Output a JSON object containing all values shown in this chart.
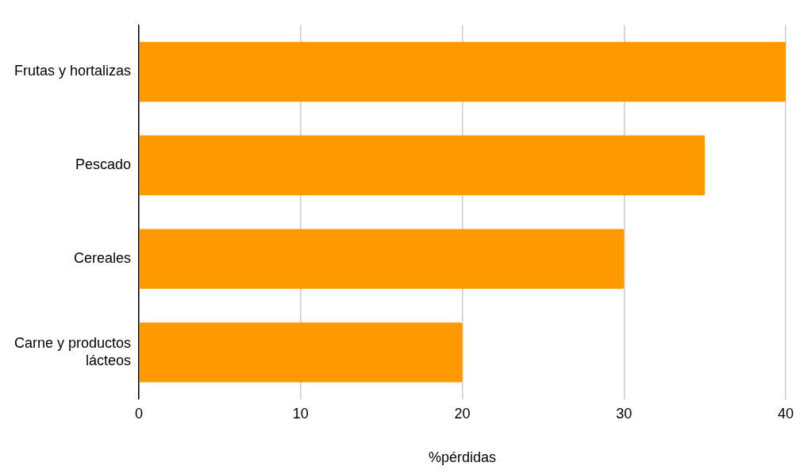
{
  "chart_data": {
    "type": "bar",
    "orientation": "horizontal",
    "xlabel": "%pérdidas",
    "categories": [
      "Frutas y hortalizas",
      "Pescado",
      "Cereales",
      "Carne y productos lácteos"
    ],
    "values": [
      40,
      35,
      30,
      20
    ],
    "color": "#ff9900",
    "xlim": [
      0,
      40
    ],
    "xticks": [
      0,
      10,
      20,
      30,
      40
    ],
    "grid": "x",
    "legend": false
  }
}
